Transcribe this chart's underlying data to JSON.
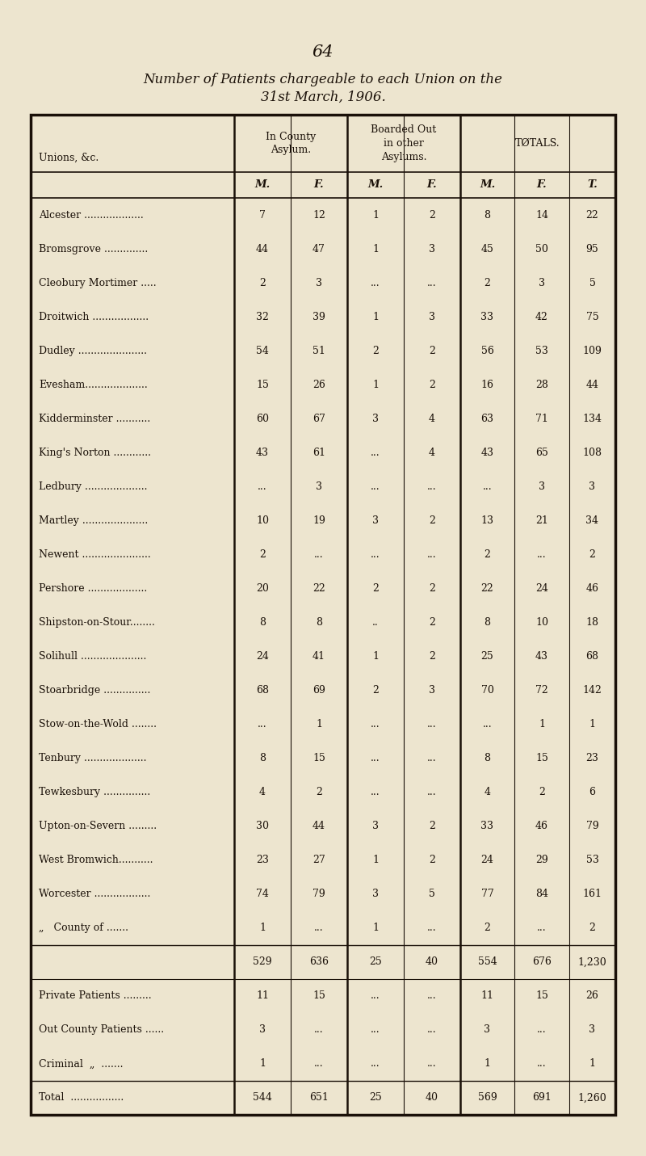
{
  "page_number": "64",
  "title_line1": "Number of Patients chargeable to each Union on the",
  "title_line2": "31st March, 1906.",
  "bg_color": "#ede5cf",
  "text_color": "#1a1008",
  "sub_headers": [
    "M.",
    "F.",
    "M.",
    "F.",
    "M.",
    "F.",
    "T."
  ],
  "rows": [
    [
      "Alcester ...................",
      "7",
      "12",
      "1",
      "2",
      "8",
      "14",
      "22"
    ],
    [
      "Bromsgrove ..............",
      "44",
      "47",
      "1",
      "3",
      "45",
      "50",
      "95"
    ],
    [
      "Cleobury Mortimer .....",
      "2",
      "3",
      "...",
      "...",
      "2",
      "3",
      "5"
    ],
    [
      "Droitwich ..................",
      "32",
      "39",
      "1",
      "3",
      "33",
      "42",
      "75"
    ],
    [
      "Dudley ......................",
      "54",
      "51",
      "2",
      "2",
      "56",
      "53",
      "109"
    ],
    [
      "Evesham....................",
      "15",
      "26",
      "1",
      "2",
      "16",
      "28",
      "44"
    ],
    [
      "Kidderminster ...........",
      "60",
      "67",
      "3",
      "4",
      "63",
      "71",
      "134"
    ],
    [
      "King's Norton ............",
      "43",
      "61",
      "...",
      "4",
      "43",
      "65",
      "108"
    ],
    [
      "Ledbury ....................",
      "...",
      "3",
      "...",
      "...",
      "...",
      "3",
      "3"
    ],
    [
      "Martley .....................",
      "10",
      "19",
      "3",
      "2",
      "13",
      "21",
      "34"
    ],
    [
      "Newent ......................",
      "2",
      "...",
      "...",
      "...",
      "2",
      "...",
      "2"
    ],
    [
      "Pershore ...................",
      "20",
      "22",
      "2",
      "2",
      "22",
      "24",
      "46"
    ],
    [
      "Shipston-on-Stour........",
      "8",
      "8",
      "..",
      "2",
      "8",
      "10",
      "18"
    ],
    [
      "Solihull .....................",
      "24",
      "41",
      "1",
      "2",
      "25",
      "43",
      "68"
    ],
    [
      "Stoarbridge ...............",
      "68",
      "69",
      "2",
      "3",
      "70",
      "72",
      "142"
    ],
    [
      "Stow-on-the-Wold ........",
      "...",
      "1",
      "...",
      "...",
      "...",
      "1",
      "1"
    ],
    [
      "Tenbury ....................",
      "8",
      "15",
      "...",
      "...",
      "8",
      "15",
      "23"
    ],
    [
      "Tewkesbury ...............",
      "4",
      "2",
      "...",
      "...",
      "4",
      "2",
      "6"
    ],
    [
      "Upton-on-Severn .........",
      "30",
      "44",
      "3",
      "2",
      "33",
      "46",
      "79"
    ],
    [
      "West Bromwich...........",
      "23",
      "27",
      "1",
      "2",
      "24",
      "29",
      "53"
    ],
    [
      "Worcester ..................",
      "74",
      "79",
      "3",
      "5",
      "77",
      "84",
      "161"
    ],
    [
      "„   County of .......",
      "1",
      "...",
      "1",
      "...",
      "2",
      "...",
      "2"
    ]
  ],
  "subtotal_row": [
    "529",
    "636",
    "25",
    "40",
    "554",
    "676",
    "1,230"
  ],
  "extra_rows": [
    [
      "Private Patients .........",
      "11",
      "15",
      "...",
      "...",
      "11",
      "15",
      "26"
    ],
    [
      "Out County Patients ......",
      "3",
      "...",
      "...",
      "...",
      "3",
      "...",
      "3"
    ],
    [
      "Criminal  „  .......",
      "1",
      "...",
      "...",
      "...",
      "1",
      "...",
      "1"
    ]
  ],
  "total_row": [
    "Total  .................",
    "544",
    "651",
    "25",
    "40",
    "569",
    "691",
    "1,260"
  ]
}
